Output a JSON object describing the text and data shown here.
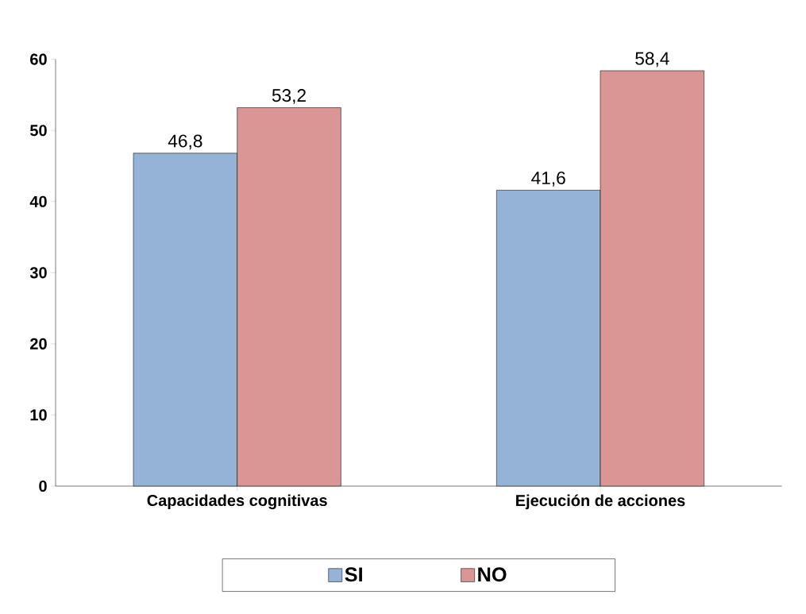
{
  "chart_data": {
    "type": "bar",
    "categories": [
      "Capacidades cognitivas",
      "Ejecución de acciones"
    ],
    "series": [
      {
        "name": "SI",
        "color": "#95b3d7",
        "values": [
          46.8,
          41.6
        ],
        "value_labels": [
          "46,8",
          "41,6"
        ]
      },
      {
        "name": "NO",
        "color": "#d99694",
        "values": [
          53.2,
          58.4
        ],
        "value_labels": [
          "53,2",
          "58,4"
        ]
      }
    ],
    "ylim": [
      0,
      60
    ],
    "yticks": [
      0,
      10,
      20,
      30,
      40,
      50,
      60
    ],
    "grid": false,
    "legend": "bottom"
  }
}
